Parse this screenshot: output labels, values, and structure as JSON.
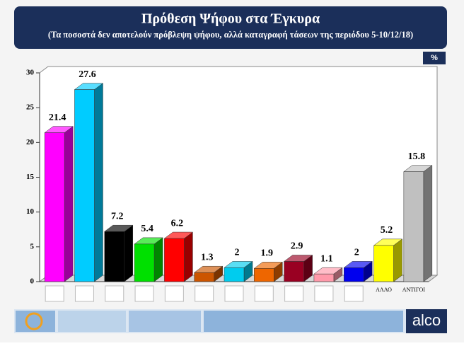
{
  "chart_data": {
    "type": "bar3d",
    "title": "Πρόθεση Ψήφου στα Έγκυρα",
    "subtitle": "(Τα ποσοστά δεν αποτελούν πρόβλεψη ψήφου, αλλά καταγραφή τάσεων  της περιόδου 5-10/12/18)",
    "unit": "%",
    "brand": "alco",
    "categories": [
      null,
      null,
      null,
      null,
      null,
      null,
      null,
      null,
      null,
      null,
      null,
      "ΑΛΛΟ",
      "ΑΝΤΙΓΟΙ"
    ],
    "values": [
      21.4,
      27.6,
      7.2,
      5.4,
      6.2,
      1.3,
      2,
      1.9,
      2.9,
      1.1,
      2,
      5.2,
      15.8
    ],
    "colors": [
      "#ff00ff",
      "#00ccff",
      "#000000",
      "#00e000",
      "#ff0000",
      "#cc5500",
      "#00ccee",
      "#ee6600",
      "#990022",
      "#ff99aa",
      "#0000ee",
      "#ffff00",
      "#c0c0c0"
    ],
    "ylim": [
      0,
      30
    ],
    "yticks": [
      0,
      5,
      10,
      15,
      20,
      25,
      30
    ],
    "grid": false
  }
}
